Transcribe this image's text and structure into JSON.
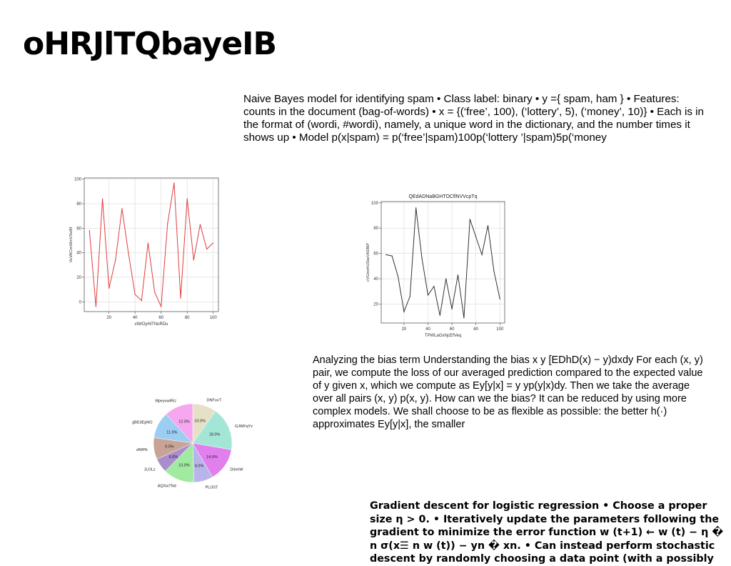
{
  "slide": {
    "title": "oHRJlTQbayeIB",
    "paragraphs": [
      "Naive Bayes model for identifying spam • Class label: binary • y ={ spam, ham } • Features: counts in the document (bag-of-words) • x = {(‘free’, 100), (‘lottery’, 5), (‘money’, 10)} • Each is in the format of (wordi, #wordi), namely, a unique word in the dictionary, and the number times it shows up • Model p(x|spam) = p(‘free’|spam)100p(‘lottery ’|spam)5p(‘money",
      "Analyzing the bias term Understanding the bias  x  y [EDhD(x) − y)dxdy For each (x, y) pair, we compute the loss of our averaged prediction compared to the expected value of y given x, which we compute as Ey[y|x] = y yp(y|x)dy. Then we take the average over all pairs (x, y)  p(x, y). How can we the bias? It can be reduced by using more complex models. We shall choose to be as flexible as possible: the better h(·) approximates Ey[y|x], the smaller",
      "Gradient descent for logistic regression • Choose a proper size η > 0. • Iteratively update the parameters following the gradient to minimize the error function w (t+1) ← w (t) − η � n σ(x☰ n w (t)) − yn � xn. • Can instead perform stochastic descent by randomly choosing a data point (with a possibly"
    ]
  },
  "chart_data": [
    {
      "type": "line",
      "title": "",
      "xlabel": "vtWOyHiTNoRDu",
      "ylabel": "VeVACnnWmVSwBf",
      "color": "#e03c3c",
      "x": [
        5,
        10,
        15,
        20,
        25,
        30,
        35,
        40,
        45,
        50,
        55,
        60,
        65,
        70,
        75,
        80,
        85,
        90,
        95,
        100
      ],
      "y": [
        58,
        -4,
        84,
        11,
        34,
        76,
        39,
        6,
        1,
        48,
        8,
        -4,
        64,
        97,
        3,
        84,
        34,
        63,
        43,
        48
      ],
      "xlim": [
        1,
        104
      ],
      "ylim": [
        -8,
        101
      ],
      "xticks": [
        20,
        40,
        60,
        80,
        100
      ],
      "yticks": [
        0,
        20,
        40,
        60,
        80,
        100
      ],
      "grid": true
    },
    {
      "type": "line",
      "title": "QEdADNaBGHTOCflNVVcpTq",
      "xlabel": "TPWLaGxhjcEfVeq",
      "ylabel": "cVGmnhUDasVkDBiP",
      "color": "#333333",
      "x": [
        5,
        10,
        15,
        20,
        25,
        30,
        35,
        40,
        45,
        50,
        55,
        60,
        65,
        70,
        75,
        80,
        85,
        90,
        95,
        100
      ],
      "y": [
        59,
        58,
        42,
        14,
        26,
        96,
        56,
        27,
        34,
        11,
        40,
        16,
        43,
        9,
        87,
        73,
        59,
        82,
        46,
        24
      ],
      "xlim": [
        1,
        104
      ],
      "ylim": [
        5,
        101
      ],
      "xticks": [
        20,
        40,
        60,
        80,
        100
      ],
      "yticks": [
        20,
        40,
        60,
        80,
        100
      ],
      "grid": true
    },
    {
      "type": "pie",
      "title": "",
      "labels": [
        "DNFuvT",
        "GJWFqYz",
        "DiirmW",
        "PLlJST",
        "AQXwTNd",
        "JLOLz",
        "sfWPk",
        "gBEdEgNO",
        "MpeyvwlRU"
      ],
      "values": [
        10.0,
        18.0,
        14.0,
        8.0,
        13.0,
        6.0,
        9.0,
        11.0,
        12.0
      ],
      "pct_labels": [
        "10.0%",
        "18.0%",
        "14.0%",
        "8.0%",
        "13.0%",
        "6.0%",
        "9.0%",
        "11.0%",
        "12.0%"
      ],
      "colors": [
        "#e6e0c6",
        "#a4e6d6",
        "#e17fec",
        "#b9b5ec",
        "#a1eaa1",
        "#ab8ccd",
        "#c8a497",
        "#9ccdf2",
        "#f7a7ef"
      ],
      "start_angle": 90,
      "direction": "clockwise"
    }
  ]
}
